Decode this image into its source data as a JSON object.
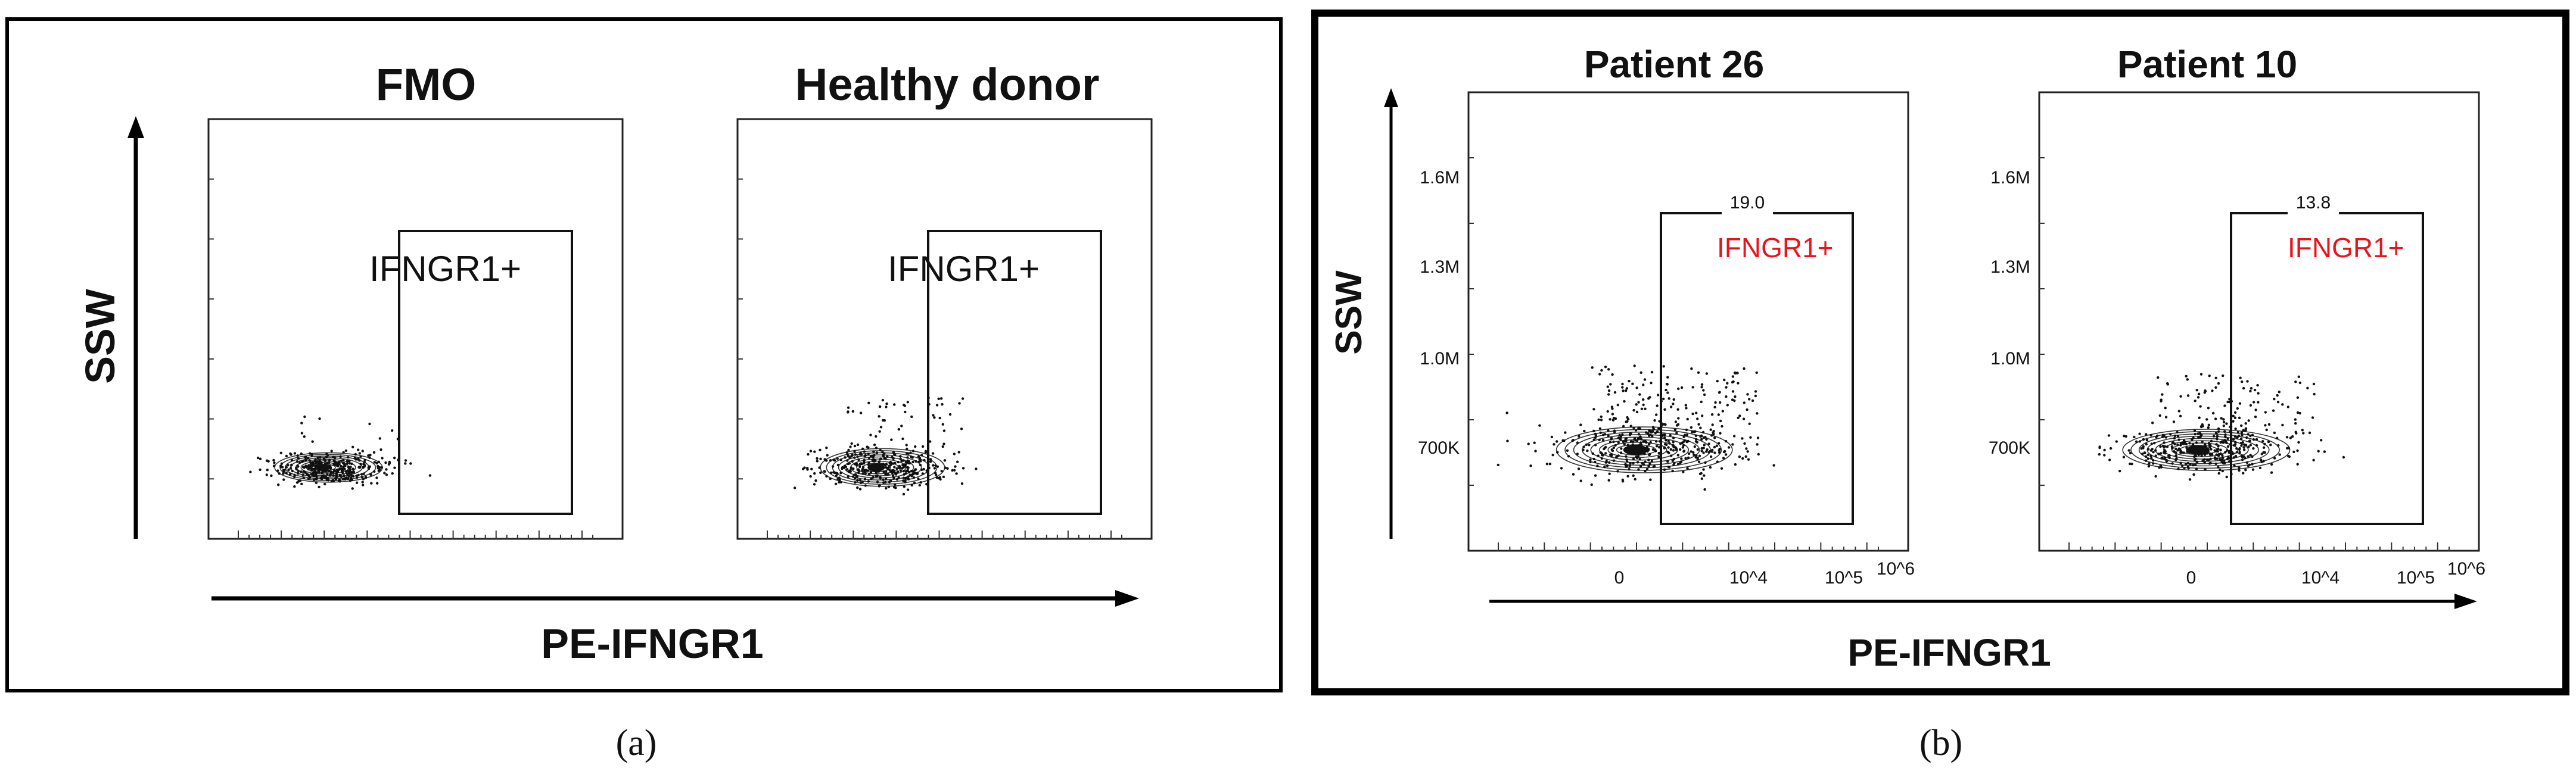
{
  "figure": {
    "panel_a_caption": "(a)",
    "panel_b_caption": "(b)"
  },
  "colors": {
    "frame": "#000000",
    "gate_label_a": "#111111",
    "gate_label_b": "#e8141b",
    "contour": "#111111"
  },
  "chart_data": [
    {
      "panel": "a",
      "type": "scatter",
      "subtype": "flow-cytometry contour plot",
      "xlabel": "PE-IFNGR1",
      "ylabel": "SSW",
      "x_ticks_labeled": false,
      "y_ticks_labeled": false,
      "plots": [
        {
          "title": "FMO",
          "gate_label": "IFNGR1+",
          "gate_frequency": "",
          "cloud": {
            "center": [
              0.29,
              0.17
            ],
            "spread": [
              0.13,
              0.035
            ],
            "count": 380,
            "spill": 0.02
          },
          "gate": {
            "x_range": [
              0.46,
              0.88
            ],
            "y_range": [
              0.0,
              0.7
            ]
          }
        },
        {
          "title": "Healthy donor",
          "gate_label": "IFNGR1+",
          "gate_frequency": "",
          "cloud": {
            "center": [
              0.35,
              0.17
            ],
            "spread": [
              0.15,
              0.045
            ],
            "count": 420,
            "spill": 0.12
          },
          "gate": {
            "x_range": [
              0.46,
              0.88
            ],
            "y_range": [
              0.0,
              0.7
            ]
          }
        }
      ]
    },
    {
      "panel": "b",
      "type": "scatter",
      "subtype": "flow-cytometry contour plot",
      "xlabel": "PE-IFNGR1",
      "ylabel": "SSW",
      "x_tick_labels": [
        "0",
        "10^4",
        "10^5",
        "10^6"
      ],
      "y_tick_labels": [
        "700K",
        "1.0M",
        "1.3M",
        "1.6M"
      ],
      "plots": [
        {
          "title": "Patient 26",
          "gate_label": "IFNGR1+",
          "gate_frequency": "19.0",
          "cloud": {
            "center": [
              0.4,
              0.22
            ],
            "spread": [
              0.2,
              0.05
            ],
            "count": 520,
            "spill": 0.3
          },
          "gate": {
            "x_range": [
              0.44,
              0.92
            ],
            "y_range": [
              0.0,
              0.71
            ]
          }
        },
        {
          "title": "Patient 10",
          "gate_label": "IFNGR1+",
          "gate_frequency": "13.8",
          "cloud": {
            "center": [
              0.38,
              0.22
            ],
            "spread": [
              0.19,
              0.045
            ],
            "count": 480,
            "spill": 0.22
          },
          "gate": {
            "x_range": [
              0.44,
              0.92
            ],
            "y_range": [
              0.0,
              0.71
            ]
          }
        }
      ]
    }
  ]
}
